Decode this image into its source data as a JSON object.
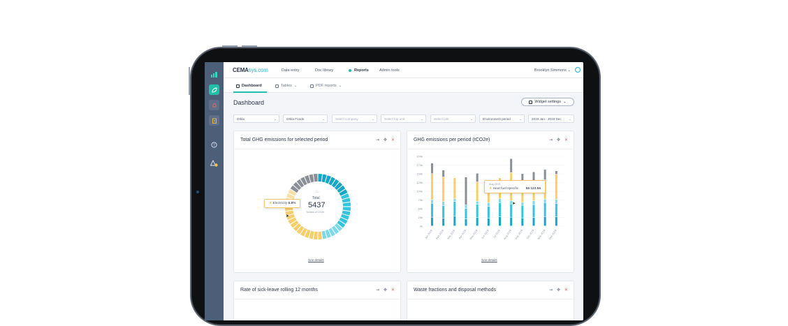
{
  "app": {
    "brand_bold": "CEMA",
    "brand_light": "sys.com",
    "nav": [
      "Data entry",
      "Doc library",
      "Reports",
      "Admin tools"
    ],
    "active_nav": "Reports",
    "user": "Brooklyn Simmons"
  },
  "tabs": [
    "Dashboard",
    "Tables",
    "PDF reports"
  ],
  "page": {
    "title": "Dashboard",
    "widget_settings": "Widget settings"
  },
  "filters": [
    {
      "text": "Orkla",
      "placeholder": false
    },
    {
      "text": "Orkla Foods",
      "placeholder": false
    },
    {
      "text": "Select company",
      "placeholder": true
    },
    {
      "text": "Select top unit",
      "placeholder": true
    },
    {
      "text": "Select unit",
      "placeholder": true
    },
    {
      "text": "Environment period",
      "placeholder": false
    },
    {
      "text": "2019 Jan - 2019 Dec",
      "placeholder": false
    }
  ],
  "cards": {
    "donut": {
      "title": "Total GHG emissions for selected period",
      "total_label": "Total",
      "total_value": "5437",
      "unit": "Tonnes of CO2e",
      "tooltip_label": "Electricity",
      "tooltip_value": "6.8%",
      "see_details": "See details"
    },
    "bars": {
      "title": "GHG emissions per period (tCO2e)",
      "tooltip_period": "Aug 2019",
      "tooltip_label": "Heat fuel specific",
      "tooltip_value": "56 123.56",
      "see_details": "See details"
    },
    "sick": {
      "title": "Rate of sick-leave rolling 12 months"
    },
    "waste": {
      "title": "Waste fractions and disposal methods"
    }
  },
  "colors": {
    "accent": "#1fbfa9",
    "cyan_dark": "#17a6c7",
    "cyan": "#35c3dd",
    "cyan_light": "#7fd8e8",
    "yellow": "#f6cf6c",
    "gray": "#8a8e96",
    "sidebar": "#4b5f79"
  },
  "chart_data": {
    "type": "bar",
    "title": "GHG emissions per period (tCO2e)",
    "categories": [
      "Jan 2019",
      "Feb 2019",
      "Mar 2019",
      "Apr 2019",
      "May 2019",
      "Jun 2019",
      "Jul 2019",
      "Aug 2019",
      "Sep 2019",
      "Oct 2019",
      "Nov 2019",
      "Dec 2019"
    ],
    "y_ticks": [
      "0k",
      "25k",
      "50k",
      "75k",
      "100k",
      "125k",
      "150k",
      "175k",
      "200k"
    ],
    "ylim": [
      0,
      200000
    ],
    "series": [
      {
        "name": "cyan-dark",
        "values": [
          25000,
          22000,
          28000,
          20000,
          24000,
          22000,
          26000,
          25000,
          23000,
          24000,
          27000,
          26000
        ]
      },
      {
        "name": "cyan",
        "values": [
          40000,
          36000,
          42000,
          30000,
          38000,
          34000,
          40000,
          38000,
          36000,
          37000,
          40000,
          38000
        ]
      },
      {
        "name": "cyan-light",
        "values": [
          10000,
          12000,
          8000,
          10000,
          9000,
          11000,
          12000,
          10000,
          9000,
          11000,
          10000,
          12000
        ]
      },
      {
        "name": "yellow",
        "values": [
          75000,
          70000,
          60000,
          0,
          55000,
          30000,
          60000,
          80000,
          62000,
          58000,
          55000,
          72000
        ]
      },
      {
        "name": "gray",
        "values": [
          30000,
          20000,
          0,
          80000,
          25000,
          30000,
          0,
          40000,
          20000,
          25000,
          30000,
          10000
        ]
      }
    ]
  }
}
